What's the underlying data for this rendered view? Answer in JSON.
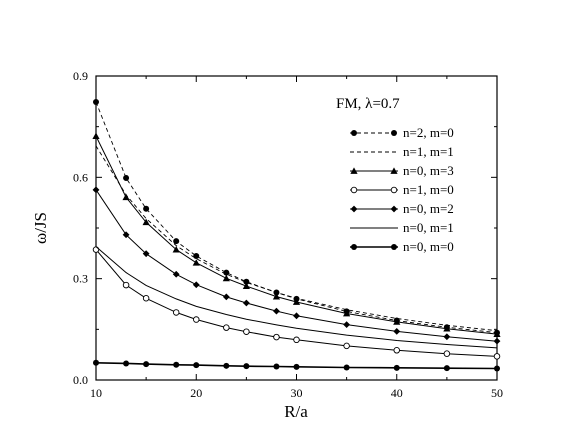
{
  "chart_data": {
    "type": "line",
    "xlabel": "R/a",
    "ylabel": "ω/JS",
    "xlim": [
      10,
      50
    ],
    "ylim": [
      0,
      0.9
    ],
    "xticks": [
      "10",
      "20",
      "30",
      "40",
      "50"
    ],
    "yticks": [
      "0.0",
      "0.3",
      "0.6",
      "0.9"
    ],
    "grid": false,
    "legend_placement": "upper-right",
    "annotation": "FM, λ=0.7",
    "series": [
      {
        "name": "n=2, m=0",
        "line": "dashed",
        "marker": "filled-circle",
        "marker_at_points": true,
        "x": [
          10,
          13,
          15,
          18,
          20,
          23,
          25,
          28,
          30,
          35,
          40,
          45,
          50
        ],
        "y": [
          0.823,
          0.598,
          0.507,
          0.411,
          0.367,
          0.318,
          0.291,
          0.259,
          0.24,
          0.203,
          0.176,
          0.156,
          0.14
        ]
      },
      {
        "name": "n=1, m=1",
        "line": "dashed",
        "marker": "none",
        "marker_at_points": false,
        "x": [
          10,
          13,
          15,
          18,
          20,
          23,
          25,
          28,
          30,
          35,
          40,
          45,
          50
        ],
        "y": [
          0.693,
          0.548,
          0.478,
          0.398,
          0.359,
          0.313,
          0.289,
          0.259,
          0.242,
          0.208,
          0.182,
          0.162,
          0.146
        ]
      },
      {
        "name": "n=0, m=3",
        "line": "solid",
        "marker": "filled-triangle",
        "marker_at_points": true,
        "x": [
          10,
          13,
          15,
          18,
          20,
          23,
          25,
          28,
          30,
          35,
          40,
          45,
          50
        ],
        "y": [
          0.722,
          0.541,
          0.467,
          0.386,
          0.347,
          0.301,
          0.278,
          0.247,
          0.231,
          0.197,
          0.172,
          0.152,
          0.136
        ]
      },
      {
        "name": "n=1, m=0",
        "line": "solid",
        "marker": "open-circle",
        "marker_at_points": true,
        "x": [
          10,
          13,
          15,
          18,
          20,
          23,
          25,
          28,
          30,
          35,
          40,
          45,
          50
        ],
        "y": [
          0.386,
          0.281,
          0.242,
          0.2,
          0.179,
          0.155,
          0.143,
          0.127,
          0.119,
          0.101,
          0.088,
          0.078,
          0.07
        ]
      },
      {
        "name": "n=0, m=2",
        "line": "solid",
        "marker": "filled-diamond",
        "marker_at_points": true,
        "x": [
          10,
          13,
          15,
          18,
          20,
          23,
          25,
          28,
          30,
          35,
          40,
          45,
          50
        ],
        "y": [
          0.563,
          0.43,
          0.374,
          0.313,
          0.282,
          0.246,
          0.228,
          0.204,
          0.19,
          0.164,
          0.144,
          0.128,
          0.115
        ]
      },
      {
        "name": "n=0, m=1",
        "line": "solid",
        "marker": "none",
        "marker_at_points": false,
        "x": [
          10,
          13,
          15,
          18,
          20,
          23,
          25,
          28,
          30,
          35,
          40,
          45,
          50
        ],
        "y": [
          0.395,
          0.318,
          0.28,
          0.24,
          0.218,
          0.194,
          0.18,
          0.163,
          0.153,
          0.133,
          0.117,
          0.105,
          0.095
        ]
      },
      {
        "name": "n=0, m=0",
        "line": "solid-thick",
        "marker": "filled-circle",
        "marker_at_points": true,
        "x": [
          10,
          13,
          15,
          18,
          20,
          23,
          25,
          28,
          30,
          35,
          40,
          45,
          50
        ],
        "y": [
          0.051,
          0.049,
          0.047,
          0.045,
          0.044,
          0.042,
          0.041,
          0.04,
          0.039,
          0.037,
          0.036,
          0.035,
          0.034
        ]
      }
    ]
  }
}
